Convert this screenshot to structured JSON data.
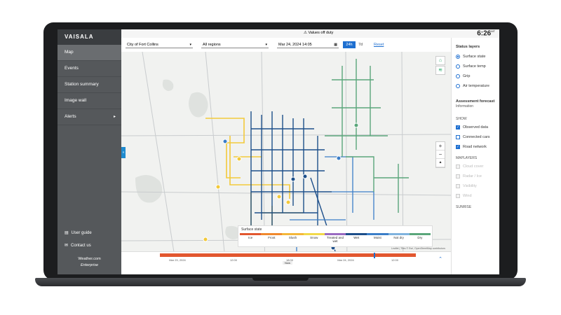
{
  "app": {
    "brand": "VAISALA",
    "status_message": "Values off duty",
    "clock": "6:26",
    "clock_tz": "MT"
  },
  "nav": {
    "items": [
      {
        "label": "Map",
        "active": true
      },
      {
        "label": "Events"
      },
      {
        "label": "Station summary"
      },
      {
        "label": "Image wall"
      },
      {
        "label": "Alerts"
      }
    ],
    "user_guide": "User guide",
    "contact_us": "Contact us",
    "footer_line1": "Weather.com",
    "footer_line2": "Enterprise"
  },
  "filters": {
    "city": "City of Fort Collins",
    "region": "All regions",
    "date": "Mar 24, 2024 14:05",
    "range_24": "24h",
    "range_7d": "7d",
    "reset": "Reset"
  },
  "legend": {
    "title": "Surface state",
    "states": [
      {
        "label": "Ice",
        "color": "#e2572f"
      },
      {
        "label": "Frost",
        "color": "#f0892d"
      },
      {
        "label": "Slush",
        "color": "#f4b73a"
      },
      {
        "label": "Snow",
        "color": "#f2d94a"
      },
      {
        "label": "Treated and wet",
        "color": "#9a6bc1"
      },
      {
        "label": "Wet",
        "color": "#1d4f8a"
      },
      {
        "label": "Moist",
        "color": "#3b7ec8"
      },
      {
        "label": "Not dry",
        "color": "#7fb3de"
      },
      {
        "label": "Dry",
        "color": "#5aa67a"
      }
    ]
  },
  "attribution": "Leaflet | Tiles © Esri, OpenStreetMap contributors",
  "timeline": {
    "ticks": [
      "Mar 23, 2024",
      "12:00",
      "18:00",
      "Mar 24, 2024",
      "12:00"
    ],
    "now_label": "Now"
  },
  "panel": {
    "status_layers_title": "Status layers",
    "status_layers": [
      {
        "label": "Surface state",
        "selected": true
      },
      {
        "label": "Surface temp",
        "selected": false
      },
      {
        "label": "Grip",
        "selected": false
      },
      {
        "label": "Air temperature",
        "selected": false
      }
    ],
    "section_title": "Assessment forecast",
    "section_sub": "Information",
    "show_label": "SHOW",
    "show_items": [
      {
        "label": "Observed data",
        "checked": true
      },
      {
        "label": "Connected cars",
        "checked": false
      },
      {
        "label": "Road network",
        "checked": true
      }
    ],
    "hide_label": "MAPLAYERS",
    "hide_items": [
      {
        "label": "Cloud cover"
      },
      {
        "label": "Radar / Ice"
      },
      {
        "label": "Visibility"
      },
      {
        "label": "Wind"
      }
    ],
    "bottom_label": "SUNRISE"
  }
}
